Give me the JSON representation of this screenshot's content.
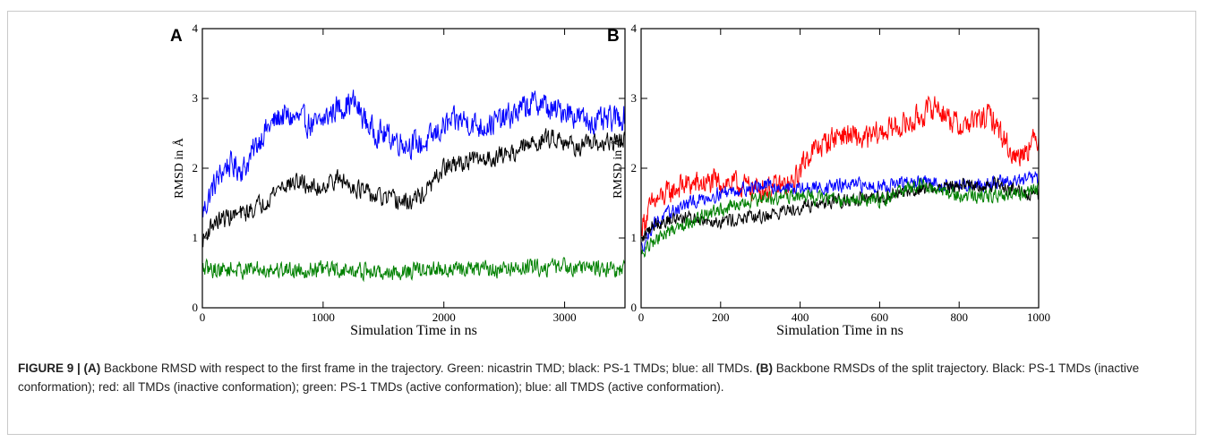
{
  "chart_data": [
    {
      "type": "line",
      "panel": "A",
      "xlabel": "Simulation Time in ns",
      "ylabel": "RMSD in Å",
      "xlim": [
        0,
        3500
      ],
      "ylim": [
        0,
        4
      ],
      "x_ticks": [
        0,
        1000,
        2000,
        3000
      ],
      "y_ticks": [
        0,
        1,
        2,
        3,
        4
      ],
      "grid": false,
      "series": [
        {
          "color": "#0000ff",
          "noise": 0.17,
          "x": [
            0,
            80,
            200,
            350,
            500,
            650,
            800,
            950,
            1100,
            1250,
            1400,
            1550,
            1700,
            1850,
            2000,
            2150,
            2300,
            2500,
            2700,
            2800,
            2900,
            3000,
            3150,
            3300,
            3500
          ],
          "values": [
            1.35,
            1.7,
            2.05,
            2.0,
            2.5,
            2.75,
            2.7,
            2.6,
            2.85,
            2.95,
            2.55,
            2.45,
            2.35,
            2.35,
            2.6,
            2.7,
            2.6,
            2.7,
            2.9,
            2.95,
            2.8,
            2.85,
            2.7,
            2.65,
            2.75
          ]
        },
        {
          "color": "#000000",
          "noise": 0.12,
          "x": [
            0,
            80,
            200,
            350,
            500,
            650,
            800,
            950,
            1100,
            1250,
            1400,
            1550,
            1700,
            1850,
            2000,
            2200,
            2400,
            2600,
            2800,
            2950,
            3100,
            3300,
            3500
          ],
          "values": [
            0.95,
            1.2,
            1.3,
            1.35,
            1.5,
            1.75,
            1.8,
            1.7,
            1.85,
            1.75,
            1.6,
            1.55,
            1.5,
            1.65,
            2.0,
            2.1,
            2.15,
            2.25,
            2.4,
            2.45,
            2.3,
            2.35,
            2.4
          ]
        },
        {
          "color": "#008000",
          "noise": 0.11,
          "x": [
            0,
            500,
            1000,
            1500,
            2000,
            2500,
            3000,
            3500
          ],
          "values": [
            0.55,
            0.55,
            0.55,
            0.5,
            0.55,
            0.55,
            0.6,
            0.55
          ]
        }
      ]
    },
    {
      "type": "line",
      "panel": "B",
      "xlabel": "Simulation Time in ns",
      "ylabel": "RMSD in Å",
      "xlim": [
        0,
        1000
      ],
      "ylim": [
        0,
        4
      ],
      "x_ticks": [
        0,
        200,
        400,
        600,
        800,
        1000
      ],
      "y_ticks": [
        0,
        1,
        2,
        3,
        4
      ],
      "grid": false,
      "series": [
        {
          "color": "#ff0000",
          "noise": 0.16,
          "x": [
            0,
            30,
            100,
            200,
            300,
            380,
            420,
            500,
            560,
            620,
            680,
            740,
            800,
            880,
            940,
            1000
          ],
          "values": [
            1.15,
            1.5,
            1.75,
            1.8,
            1.7,
            1.75,
            2.2,
            2.5,
            2.4,
            2.55,
            2.65,
            2.9,
            2.6,
            2.75,
            2.15,
            2.45
          ]
        },
        {
          "color": "#0000ff",
          "noise": 0.09,
          "x": [
            0,
            30,
            100,
            200,
            300,
            400,
            500,
            600,
            700,
            800,
            900,
            1000
          ],
          "values": [
            0.85,
            1.2,
            1.45,
            1.65,
            1.75,
            1.7,
            1.75,
            1.75,
            1.8,
            1.75,
            1.8,
            1.85
          ]
        },
        {
          "color": "#000000",
          "noise": 0.09,
          "x": [
            0,
            30,
            100,
            200,
            300,
            400,
            500,
            600,
            650,
            700,
            800,
            900,
            1000
          ],
          "values": [
            0.95,
            1.2,
            1.3,
            1.25,
            1.3,
            1.45,
            1.55,
            1.55,
            1.65,
            1.7,
            1.75,
            1.75,
            1.6
          ]
        },
        {
          "color": "#008000",
          "noise": 0.09,
          "x": [
            0,
            30,
            100,
            200,
            300,
            400,
            500,
            600,
            700,
            800,
            900,
            1000
          ],
          "values": [
            0.75,
            0.95,
            1.2,
            1.4,
            1.55,
            1.6,
            1.55,
            1.55,
            1.75,
            1.6,
            1.6,
            1.7
          ]
        }
      ]
    }
  ],
  "caption": {
    "figure_label": "FIGURE 9 |",
    "parts": [
      {
        "text": " (A)",
        "bold": true
      },
      {
        "text": " Backbone RMSD with respect to the first frame in the trajectory. Green: nicastrin TMD; black: PS-1 TMDs; blue: all TMDs. ",
        "bold": false
      },
      {
        "text": "(B)",
        "bold": true
      },
      {
        "text": " Backbone RMSDs of the split trajectory. Black: PS-1 TMDs (inactive conformation); red: all TMDs (inactive conformation); green: PS-1 TMDs (active conformation); blue: all TMDS (active conformation).",
        "bold": false
      }
    ]
  }
}
